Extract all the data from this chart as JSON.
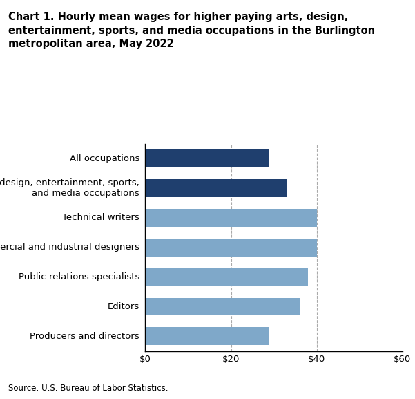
{
  "title_line1": "Chart 1. Hourly mean wages for higher paying arts, design,",
  "title_line2": "entertainment, sports, and media occupations in the Burlington",
  "title_line3": "metropolitan area, May 2022",
  "categories": [
    "Producers and directors",
    "Editors",
    "Public relations specialists",
    "Commercial and industrial designers",
    "Technical writers",
    "Arts, design, entertainment, sports,\nand media occupations",
    "All occupations"
  ],
  "values": [
    29.0,
    36.0,
    38.0,
    40.0,
    40.0,
    33.0,
    29.0
  ],
  "bar_colors": [
    "#7fa8c9",
    "#7fa8c9",
    "#7fa8c9",
    "#7fa8c9",
    "#7fa8c9",
    "#1f3f6e",
    "#1f3f6e"
  ],
  "xlim": [
    0,
    60
  ],
  "xticks": [
    0,
    20,
    40,
    60
  ],
  "xticklabels": [
    "$0",
    "$20",
    "$40",
    "$60"
  ],
  "grid_color": "#aaaaaa",
  "source": "Source: U.S. Bureau of Labor Statistics.",
  "background_color": "#ffffff",
  "title_fontsize": 10.5,
  "tick_fontsize": 9.5,
  "source_fontsize": 8.5,
  "bar_height": 0.6
}
